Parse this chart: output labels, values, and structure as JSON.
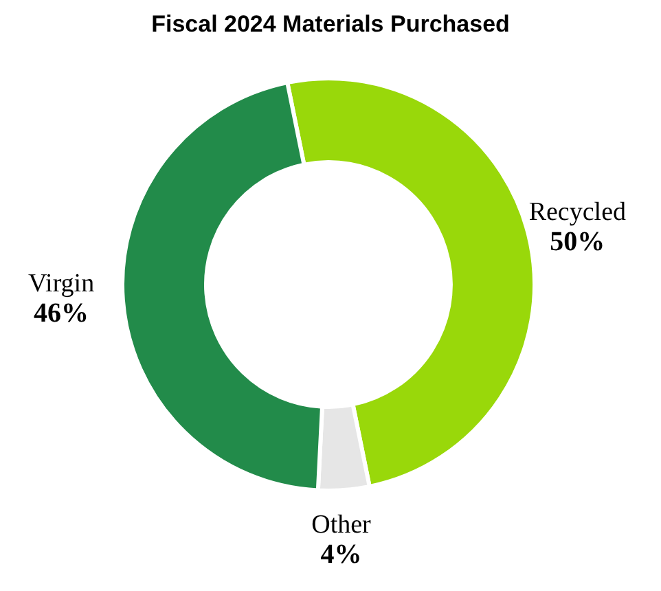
{
  "chart_data": {
    "type": "donut",
    "title": "Fiscal 2024 Materials Purchased",
    "categories": [
      "Recycled",
      "Other",
      "Virgin"
    ],
    "values": [
      50,
      4,
      46
    ],
    "colors": [
      "#99d80a",
      "#e6e6e6",
      "#228b4a"
    ],
    "value_labels": [
      "50%",
      "4%",
      "46%"
    ],
    "legend": false
  }
}
